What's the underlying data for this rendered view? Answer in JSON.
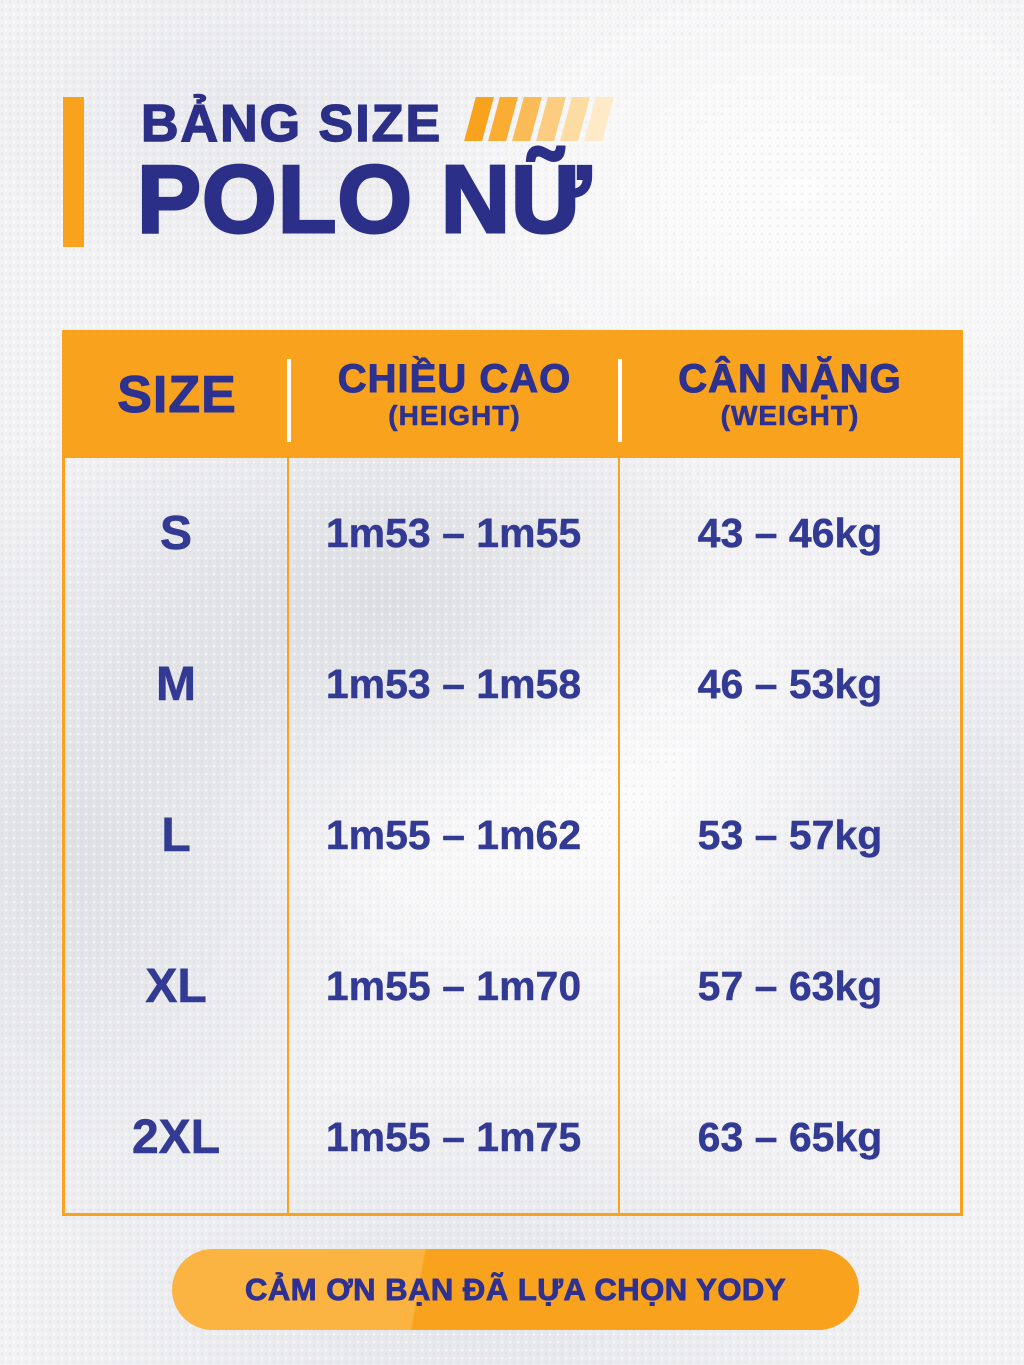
{
  "colors": {
    "accent_orange": "#F9A21D",
    "pill_highlight_orange": "#FBB441",
    "navy_title": "#2B2F87",
    "navy_table_text": "#333A94",
    "background_gray": "#F2F2F4",
    "header_divider_white": "#FFFFFF"
  },
  "header": {
    "title_line1": "BẢNG SIZE",
    "title_line2": "POLO NỮ"
  },
  "size_table": {
    "columns": [
      {
        "label": "SIZE",
        "sublabel": ""
      },
      {
        "label": "CHIỀU CAO",
        "sublabel": "(HEIGHT)"
      },
      {
        "label": "CÂN NẶNG",
        "sublabel": "(WEIGHT)"
      }
    ],
    "rows": [
      {
        "size": "S",
        "height": "1m53 – 1m55",
        "weight": "43 – 46kg"
      },
      {
        "size": "M",
        "height": "1m53 – 1m58",
        "weight": "46 – 53kg"
      },
      {
        "size": "L",
        "height": "1m55 – 1m62",
        "weight": "53 – 57kg"
      },
      {
        "size": "XL",
        "height": "1m55 – 1m70",
        "weight": "57 – 63kg"
      },
      {
        "size": "2XL",
        "height": "1m55 – 1m75",
        "weight": "63 – 65kg"
      }
    ]
  },
  "footer": {
    "thank_you": "CẢM ƠN BẠN ĐÃ LỰA CHỌN YODY"
  }
}
